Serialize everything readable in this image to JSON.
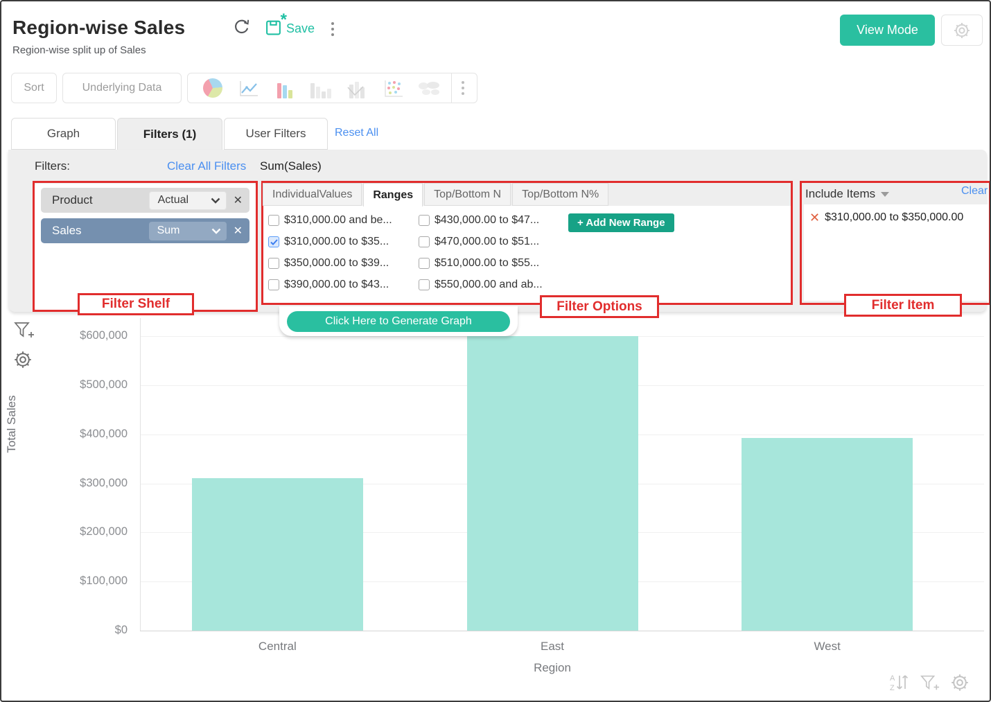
{
  "header": {
    "title": "Region-wise Sales",
    "subtitle": "Region-wise split up of Sales",
    "save_label": "Save",
    "view_mode_label": "View Mode"
  },
  "toolbar": {
    "sort_label": "Sort",
    "underlying_data_label": "Underlying Data"
  },
  "tabs": {
    "graph": "Graph",
    "filters": "Filters  (1)",
    "user_filters": "User Filters",
    "reset_all": "Reset All"
  },
  "filters_bar": {
    "label": "Filters:",
    "clear_all": "Clear All Filters",
    "summary": "Sum(Sales)"
  },
  "filter_shelf": {
    "annotation": "Filter Shelf",
    "rows": [
      {
        "field": "Product",
        "aggregation": "Actual"
      },
      {
        "field": "Sales",
        "aggregation": "Sum"
      }
    ]
  },
  "filter_options": {
    "annotation": "Filter Options",
    "tabs": [
      "IndividualValues",
      "Ranges",
      "Top/Bottom N",
      "Top/Bottom N%"
    ],
    "active_tab": "Ranges",
    "add_range_label": "+  Add New Range",
    "columns": [
      [
        {
          "label": "$310,000.00 and be...",
          "checked": false
        },
        {
          "label": "$310,000.00 to $35...",
          "checked": true
        },
        {
          "label": "$350,000.00 to $39...",
          "checked": false
        },
        {
          "label": "$390,000.00 to $43...",
          "checked": false
        }
      ],
      [
        {
          "label": "$430,000.00 to $47...",
          "checked": false
        },
        {
          "label": "$470,000.00 to $51...",
          "checked": false
        },
        {
          "label": "$510,000.00 to $55...",
          "checked": false
        },
        {
          "label": "$550,000.00 and ab...",
          "checked": false
        }
      ]
    ]
  },
  "filter_item": {
    "annotation": "Filter Item",
    "header_label": "Include Items",
    "clear_label": "Clear",
    "items": [
      "$310,000.00 to $350,000.00"
    ]
  },
  "generate_graph_label": "Click Here to Generate Graph",
  "chart_data": {
    "type": "bar",
    "categories": [
      "Central",
      "East",
      "West"
    ],
    "values": [
      310000,
      600000,
      392000
    ],
    "title": "",
    "xlabel": "Region",
    "ylabel": "Total Sales",
    "ylim": [
      0,
      600000
    ],
    "ytick_step": 100000,
    "ytick_labels": [
      "$0",
      "$100,000",
      "$200,000",
      "$300,000",
      "$400,000",
      "$500,000",
      "$600,000"
    ],
    "grid": true,
    "legend": false,
    "bar_color": "#a7e6db"
  },
  "icons": {
    "refresh": "circular-arrow",
    "save": "disk-with-asterisk",
    "kebab": "3-vertical-dots",
    "pie-chart": "pastel pie",
    "line-chart": "blue polyline",
    "bar-chart-colored": "pink/blue/green bars",
    "bar-chart-gray": "gray bars",
    "combo-chart-gray": "gray bars + line",
    "scatter-chart": "pastel dots",
    "map-chart": "faded world map",
    "gear": "settings cog",
    "filter-add": "funnel with plus",
    "sort-az": "A-Z with arrows",
    "close": "x-cross",
    "checkmark": "blue check"
  },
  "colors": {
    "teal": "#2abfa0",
    "dark_teal": "#17a286",
    "link_blue": "#4a8ff0",
    "annotation_red": "#e12d2d",
    "bar_fill": "#a7e6db",
    "shelf_blue": "#7590af",
    "shelf_gray": "#dbdbdb"
  }
}
